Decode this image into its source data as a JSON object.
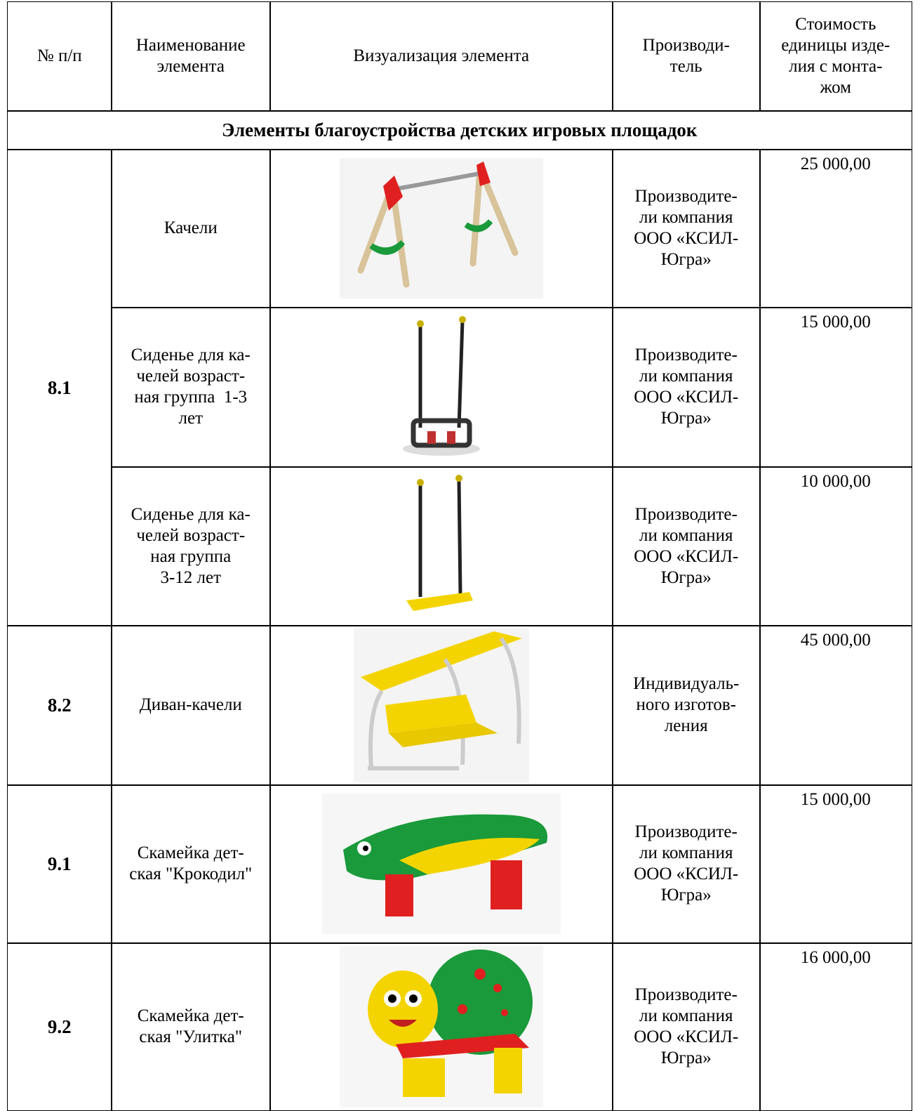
{
  "header": {
    "cells": [
      [
        "№ п/п"
      ],
      [
        "Наименование",
        "элемента"
      ],
      [
        "Визуализация элемента"
      ],
      [
        "Производи-",
        "тель"
      ],
      [
        "Стоимость",
        "единицы изде-",
        "лия с монта-",
        "жом"
      ]
    ]
  },
  "section_title": "Элементы благоустройства детских игровых площадок",
  "groups": [
    {
      "number": "8.1",
      "items": [
        {
          "name": [
            "Качели"
          ],
          "maker": [
            "Производите-",
            "ли компания",
            "ООО «КСИЛ-",
            "Югра»"
          ],
          "price": "25 000,00"
        },
        {
          "name": [
            "Сиденье для ка-",
            "челей возраст-",
            "ная группа  1-3",
            "лет"
          ],
          "maker": [
            "Производите-",
            "ли компания",
            "ООО «КСИЛ-",
            "Югра»"
          ],
          "price": "15 000,00"
        },
        {
          "name": [
            "Сиденье для ка-",
            "челей возраст-",
            "ная группа",
            "3-12 лет"
          ],
          "maker": [
            "Производите-",
            "ли компания",
            "ООО «КСИЛ-",
            "Югра»"
          ],
          "price": "10 000,00"
        }
      ]
    },
    {
      "number": "8.2",
      "items": [
        {
          "name": [
            "Диван-качели"
          ],
          "maker": [
            "Индивидуаль-",
            "ного изготов-",
            "ления"
          ],
          "price": "45 000,00"
        }
      ]
    },
    {
      "number": "9.1",
      "items": [
        {
          "name": [
            "Скамейка дет-",
            "ская \"Крокодил\""
          ],
          "maker": [
            "Производите-",
            "ли компания",
            "ООО «КСИЛ-",
            "Югра»"
          ],
          "price": "15 000,00"
        }
      ]
    },
    {
      "number": "9.2",
      "items": [
        {
          "name": [
            "Скамейка дет-",
            "ская \"Улитка\""
          ],
          "maker": [
            "Производите-",
            "ли компания",
            "ООО «КСИЛ-",
            "Югра»"
          ],
          "price": "16 000,00"
        }
      ]
    }
  ]
}
